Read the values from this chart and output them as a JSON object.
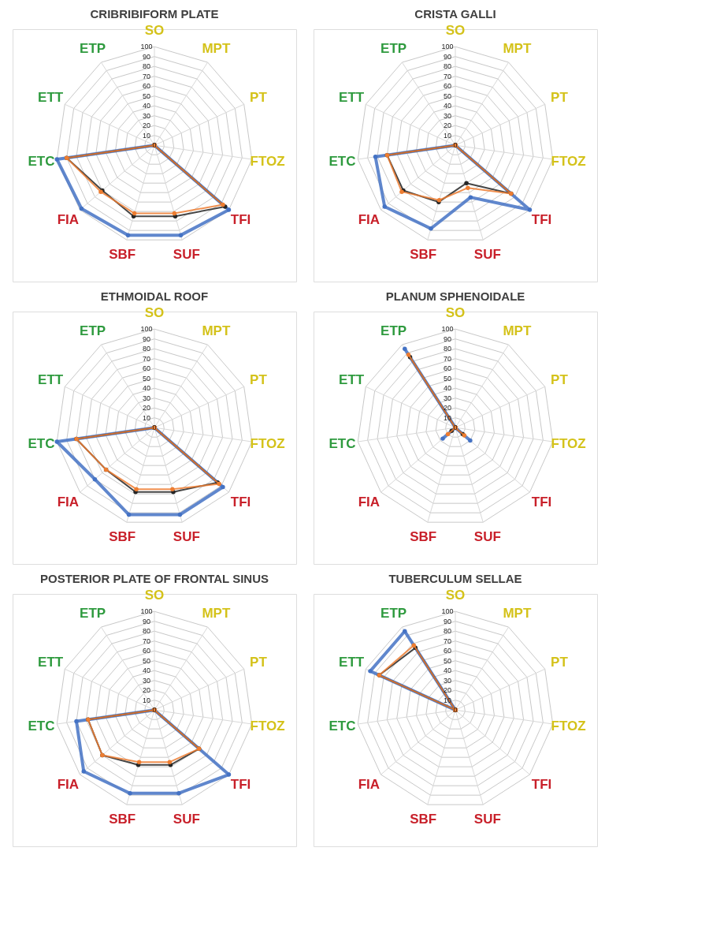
{
  "chart_data": [
    {
      "type": "radar",
      "title": "CRIBRIBIFORM PLATE",
      "categories": [
        "SO",
        "MPT",
        "PT",
        "FTOZ",
        "TFI",
        "SUF",
        "SBF",
        "FIA",
        "ETC",
        "ETT",
        "ETP"
      ],
      "ylim": [
        0,
        100
      ],
      "yticks": [
        0,
        10,
        20,
        30,
        40,
        50,
        60,
        70,
        80,
        90,
        100
      ],
      "grid": true,
      "marker": "circle",
      "series": [
        {
          "color": "#4472c4",
          "values": [
            0,
            0,
            0,
            0,
            100,
            95,
            95,
            98,
            100,
            0,
            0
          ]
        },
        {
          "color": "#262626",
          "values": [
            0,
            0,
            0,
            0,
            95,
            75,
            75,
            70,
            90,
            0,
            0
          ]
        },
        {
          "color": "#ed7d31",
          "values": [
            0,
            0,
            0,
            0,
            92,
            72,
            72,
            72,
            90,
            0,
            0
          ]
        }
      ]
    },
    {
      "type": "radar",
      "title": "CRISTA GALLI",
      "categories": [
        "SO",
        "MPT",
        "PT",
        "FTOZ",
        "TFI",
        "SUF",
        "SBF",
        "FIA",
        "ETC",
        "ETT",
        "ETP"
      ],
      "ylim": [
        0,
        100
      ],
      "yticks": [
        0,
        10,
        20,
        30,
        40,
        50,
        60,
        70,
        80,
        90,
        100
      ],
      "grid": true,
      "marker": "circle",
      "series": [
        {
          "color": "#4472c4",
          "values": [
            0,
            0,
            0,
            0,
            100,
            55,
            88,
            95,
            82,
            0,
            0
          ]
        },
        {
          "color": "#262626",
          "values": [
            0,
            0,
            0,
            0,
            75,
            40,
            60,
            70,
            70,
            0,
            0
          ]
        },
        {
          "color": "#ed7d31",
          "values": [
            0,
            0,
            0,
            0,
            75,
            45,
            58,
            72,
            70,
            0,
            0
          ]
        }
      ]
    },
    {
      "type": "radar",
      "title": "ETHMOIDAL ROOF",
      "categories": [
        "SO",
        "MPT",
        "PT",
        "FTOZ",
        "TFI",
        "SUF",
        "SBF",
        "FIA",
        "ETC",
        "ETT",
        "ETP"
      ],
      "ylim": [
        0,
        100
      ],
      "yticks": [
        0,
        10,
        20,
        30,
        40,
        50,
        60,
        70,
        80,
        90,
        100
      ],
      "grid": true,
      "marker": "circle",
      "series": [
        {
          "color": "#4472c4",
          "values": [
            0,
            0,
            0,
            0,
            92,
            92,
            92,
            80,
            100,
            0,
            0
          ]
        },
        {
          "color": "#262626",
          "values": [
            0,
            0,
            0,
            0,
            85,
            68,
            68,
            65,
            80,
            0,
            0
          ]
        },
        {
          "color": "#ed7d31",
          "values": [
            0,
            0,
            0,
            0,
            87,
            65,
            65,
            65,
            80,
            0,
            0
          ]
        }
      ]
    },
    {
      "type": "radar",
      "title": "PLANUM SPHENOIDALE",
      "categories": [
        "SO",
        "MPT",
        "PT",
        "FTOZ",
        "TFI",
        "SUF",
        "SBF",
        "FIA",
        "ETC",
        "ETT",
        "ETP"
      ],
      "ylim": [
        0,
        100
      ],
      "yticks": [
        0,
        10,
        20,
        30,
        40,
        50,
        60,
        70,
        80,
        90,
        100
      ],
      "grid": true,
      "marker": "circle",
      "series": [
        {
          "color": "#4472c4",
          "values": [
            0,
            0,
            0,
            0,
            20,
            0,
            0,
            17,
            0,
            0,
            95
          ]
        },
        {
          "color": "#262626",
          "values": [
            0,
            0,
            0,
            0,
            10,
            0,
            0,
            5,
            0,
            0,
            85
          ]
        },
        {
          "color": "#ed7d31",
          "values": [
            0,
            0,
            0,
            0,
            12,
            0,
            0,
            10,
            0,
            0,
            88
          ]
        }
      ]
    },
    {
      "type": "radar",
      "title": "POSTERIOR PLATE OF FRONTAL SINUS",
      "categories": [
        "SO",
        "MPT",
        "PT",
        "FTOZ",
        "TFI",
        "SUF",
        "SBF",
        "FIA",
        "ETC",
        "ETT",
        "ETP"
      ],
      "ylim": [
        0,
        100
      ],
      "yticks": [
        0,
        10,
        20,
        30,
        40,
        50,
        60,
        70,
        80,
        90,
        100
      ],
      "grid": true,
      "marker": "circle",
      "series": [
        {
          "color": "#4472c4",
          "values": [
            0,
            0,
            0,
            0,
            100,
            88,
            88,
            95,
            80,
            0,
            0
          ]
        },
        {
          "color": "#262626",
          "values": [
            0,
            0,
            0,
            0,
            60,
            58,
            58,
            70,
            68,
            0,
            0
          ]
        },
        {
          "color": "#ed7d31",
          "values": [
            0,
            0,
            0,
            0,
            60,
            55,
            55,
            70,
            68,
            0,
            0
          ]
        }
      ]
    },
    {
      "type": "radar",
      "title": "TUBERCULUM SELLAE",
      "categories": [
        "SO",
        "MPT",
        "PT",
        "FTOZ",
        "TFI",
        "SUF",
        "SBF",
        "FIA",
        "ETC",
        "ETT",
        "ETP"
      ],
      "ylim": [
        0,
        100
      ],
      "yticks": [
        0,
        10,
        20,
        30,
        40,
        50,
        60,
        70,
        80,
        90,
        100
      ],
      "grid": true,
      "marker": "circle",
      "series": [
        {
          "color": "#4472c4",
          "values": [
            0,
            0,
            0,
            0,
            0,
            0,
            0,
            0,
            0,
            95,
            95
          ]
        },
        {
          "color": "#262626",
          "values": [
            0,
            0,
            0,
            0,
            0,
            0,
            0,
            0,
            0,
            85,
            75
          ]
        },
        {
          "color": "#ed7d31",
          "values": [
            0,
            0,
            0,
            0,
            0,
            0,
            0,
            0,
            0,
            85,
            78
          ]
        }
      ]
    }
  ]
}
